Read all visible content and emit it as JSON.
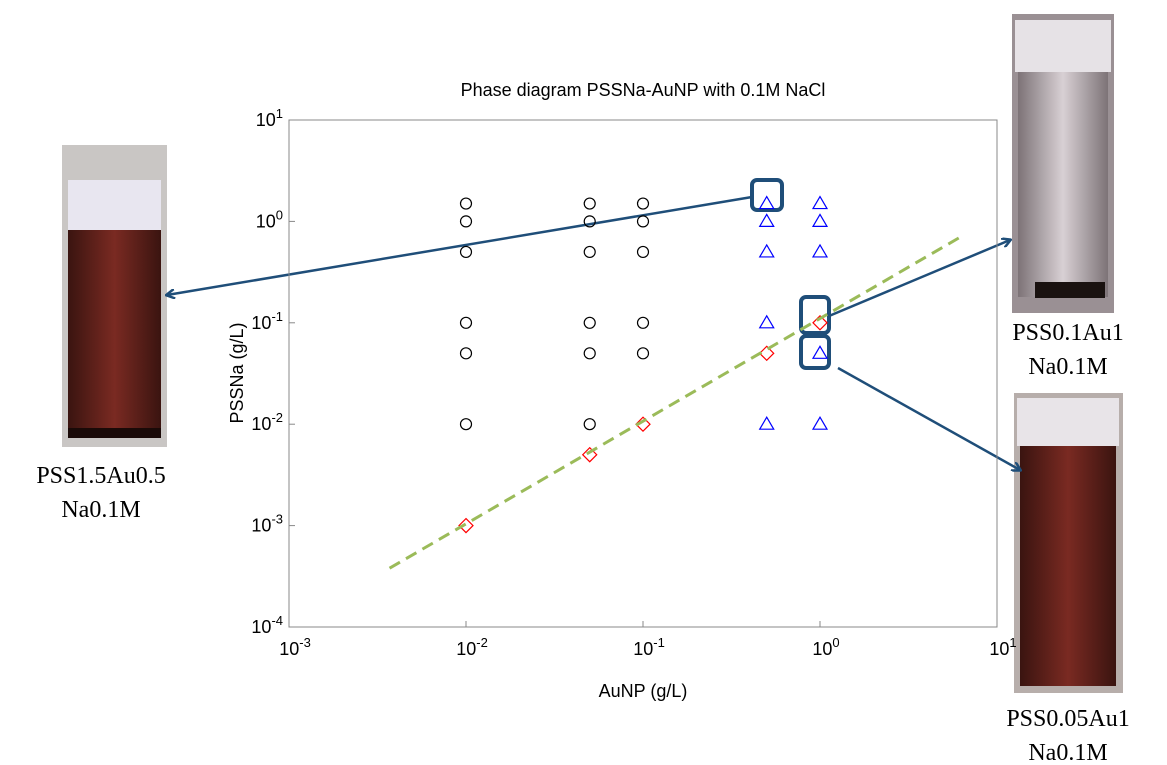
{
  "chart_data": {
    "type": "scatter",
    "title": "Phase diagram PSSNa-AuNP with 0.1M NaCl",
    "x_label": "AuNP (g/L)",
    "y_label": "PSSNa (g/L)",
    "log_x": true,
    "log_y": true,
    "xlim": [
      0.001,
      10
    ],
    "ylim": [
      0.0001,
      10
    ],
    "xticks": [
      {
        "value": 0.001,
        "label": "10",
        "exponent": "-3"
      },
      {
        "value": 0.01,
        "label": "10",
        "exponent": "-2"
      },
      {
        "value": 0.1,
        "label": "10",
        "exponent": "-1"
      },
      {
        "value": 1,
        "label": "10",
        "exponent": "0"
      },
      {
        "value": 10,
        "label": "10",
        "exponent": "1"
      }
    ],
    "yticks": [
      {
        "value": 0.0001,
        "label": "10",
        "exponent": "-4"
      },
      {
        "value": 0.001,
        "label": "10",
        "exponent": "-3"
      },
      {
        "value": 0.01,
        "label": "10",
        "exponent": "-2"
      },
      {
        "value": 0.1,
        "label": "10",
        "exponent": "-1"
      },
      {
        "value": 1,
        "label": "10",
        "exponent": "0"
      },
      {
        "value": 10,
        "label": "10",
        "exponent": "1"
      }
    ],
    "series": [
      {
        "marker": "circle",
        "color": "#000000",
        "x": [
          0.01,
          0.01,
          0.01,
          0.01,
          0.01,
          0.01,
          0.05,
          0.05,
          0.05,
          0.05,
          0.05,
          0.05,
          0.1,
          0.1,
          0.1,
          0.1,
          0.1
        ],
        "values": [
          1.5,
          1,
          0.5,
          0.1,
          0.05,
          0.01,
          1.5,
          1,
          0.5,
          0.1,
          0.05,
          0.01,
          1.5,
          1,
          0.5,
          0.1,
          0.05
        ]
      },
      {
        "marker": "diamond",
        "color": "#ff0000",
        "x": [
          0.01,
          0.05,
          0.1,
          0.5,
          1
        ],
        "values": [
          0.001,
          0.005,
          0.01,
          0.05,
          0.1
        ]
      },
      {
        "marker": "triangle",
        "color": "#0000ff",
        "x": [
          0.5,
          0.5,
          0.5,
          0.5,
          0.5,
          1,
          1,
          1,
          1,
          1
        ],
        "values": [
          1.5,
          1,
          0.5,
          0.1,
          0.01,
          1.5,
          1,
          0.5,
          0.05,
          0.01
        ]
      },
      {
        "marker": "dashed-line",
        "color": "#9bbb59",
        "x": [
          0.0037,
          6.2
        ],
        "values": [
          0.00038,
          0.7
        ]
      }
    ]
  },
  "photos": [
    {
      "caption": [
        "PSS1.5Au0.5",
        "Na0.1M"
      ]
    },
    {
      "caption": [
        "PSS0.1Au1",
        "Na0.1M"
      ]
    },
    {
      "caption": [
        "PSS0.05Au1",
        "Na0.1M"
      ]
    }
  ]
}
